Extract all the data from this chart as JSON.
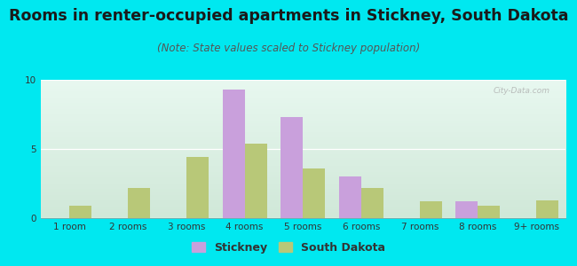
{
  "title": "Rooms in renter-occupied apartments in Stickney, South Dakota",
  "subtitle": "(Note: State values scaled to Stickney population)",
  "categories": [
    "1 room",
    "2 rooms",
    "3 rooms",
    "4 rooms",
    "5 rooms",
    "6 rooms",
    "7 rooms",
    "8 rooms",
    "9+ rooms"
  ],
  "stickney_values": [
    0,
    0,
    0,
    9.3,
    7.3,
    3.0,
    0,
    1.2,
    0
  ],
  "sd_values": [
    0.9,
    2.2,
    4.4,
    5.4,
    3.6,
    2.2,
    1.2,
    0.9,
    1.3
  ],
  "stickney_color": "#c9a0dc",
  "sd_color": "#b8c878",
  "background_outer": "#00e8f0",
  "background_top_left": "#e8f8f0",
  "background_bottom_right": "#d0e8d8",
  "ylim": [
    0,
    10
  ],
  "yticks": [
    0,
    5,
    10
  ],
  "bar_width": 0.38,
  "title_fontsize": 12.5,
  "subtitle_fontsize": 8.5,
  "tick_fontsize": 7.5,
  "legend_fontsize": 9
}
